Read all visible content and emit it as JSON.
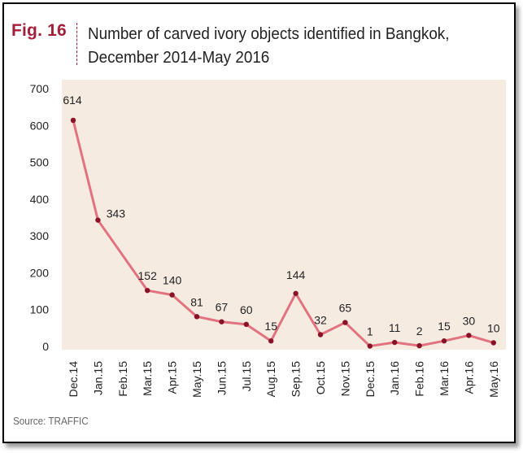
{
  "figure": {
    "label": "Fig. 16",
    "title_line1": "Number of carved ivory objects identified in Bangkok,",
    "title_line2": "December 2014-May 2016",
    "source": "Source: TRAFFIC"
  },
  "colors": {
    "accent": "#a3203a",
    "line": "#e0737f",
    "marker": "#8a1226",
    "plot_bg": "#f6ebe1"
  },
  "chart_data": {
    "type": "line",
    "title": "Number of carved ivory objects identified in Bangkok, December 2014-May 2016",
    "xlabel": "",
    "ylabel": "",
    "ylim": [
      0,
      700
    ],
    "yticks": [
      0,
      100,
      200,
      300,
      400,
      500,
      600,
      700
    ],
    "grid": false,
    "categories": [
      "Dec.14",
      "Jan.15",
      "Feb.15",
      "Mar.15",
      "Apr.15",
      "May.15",
      "Jun.15",
      "Jul.15",
      "Aug.15",
      "Sep.15",
      "Oct.15",
      "Nov.15",
      "Dec.15",
      "Jan.16",
      "Feb.16",
      "Mar.16",
      "Apr.16",
      "May.16"
    ],
    "series": [
      {
        "x": [
          "Dec.14",
          "Jan.15",
          "Mar.15",
          "Apr.15",
          "May.15",
          "Jun.15",
          "Jul.15",
          "Aug.15",
          "Sep.15",
          "Oct.15",
          "Nov.15",
          "Dec.15",
          "Jan.16",
          "Feb.16",
          "Mar.16",
          "Apr.16",
          "May.16"
        ],
        "values": [
          614,
          343,
          152,
          140,
          81,
          67,
          60,
          15,
          144,
          32,
          65,
          1,
          11,
          2,
          15,
          30,
          10
        ]
      }
    ]
  }
}
